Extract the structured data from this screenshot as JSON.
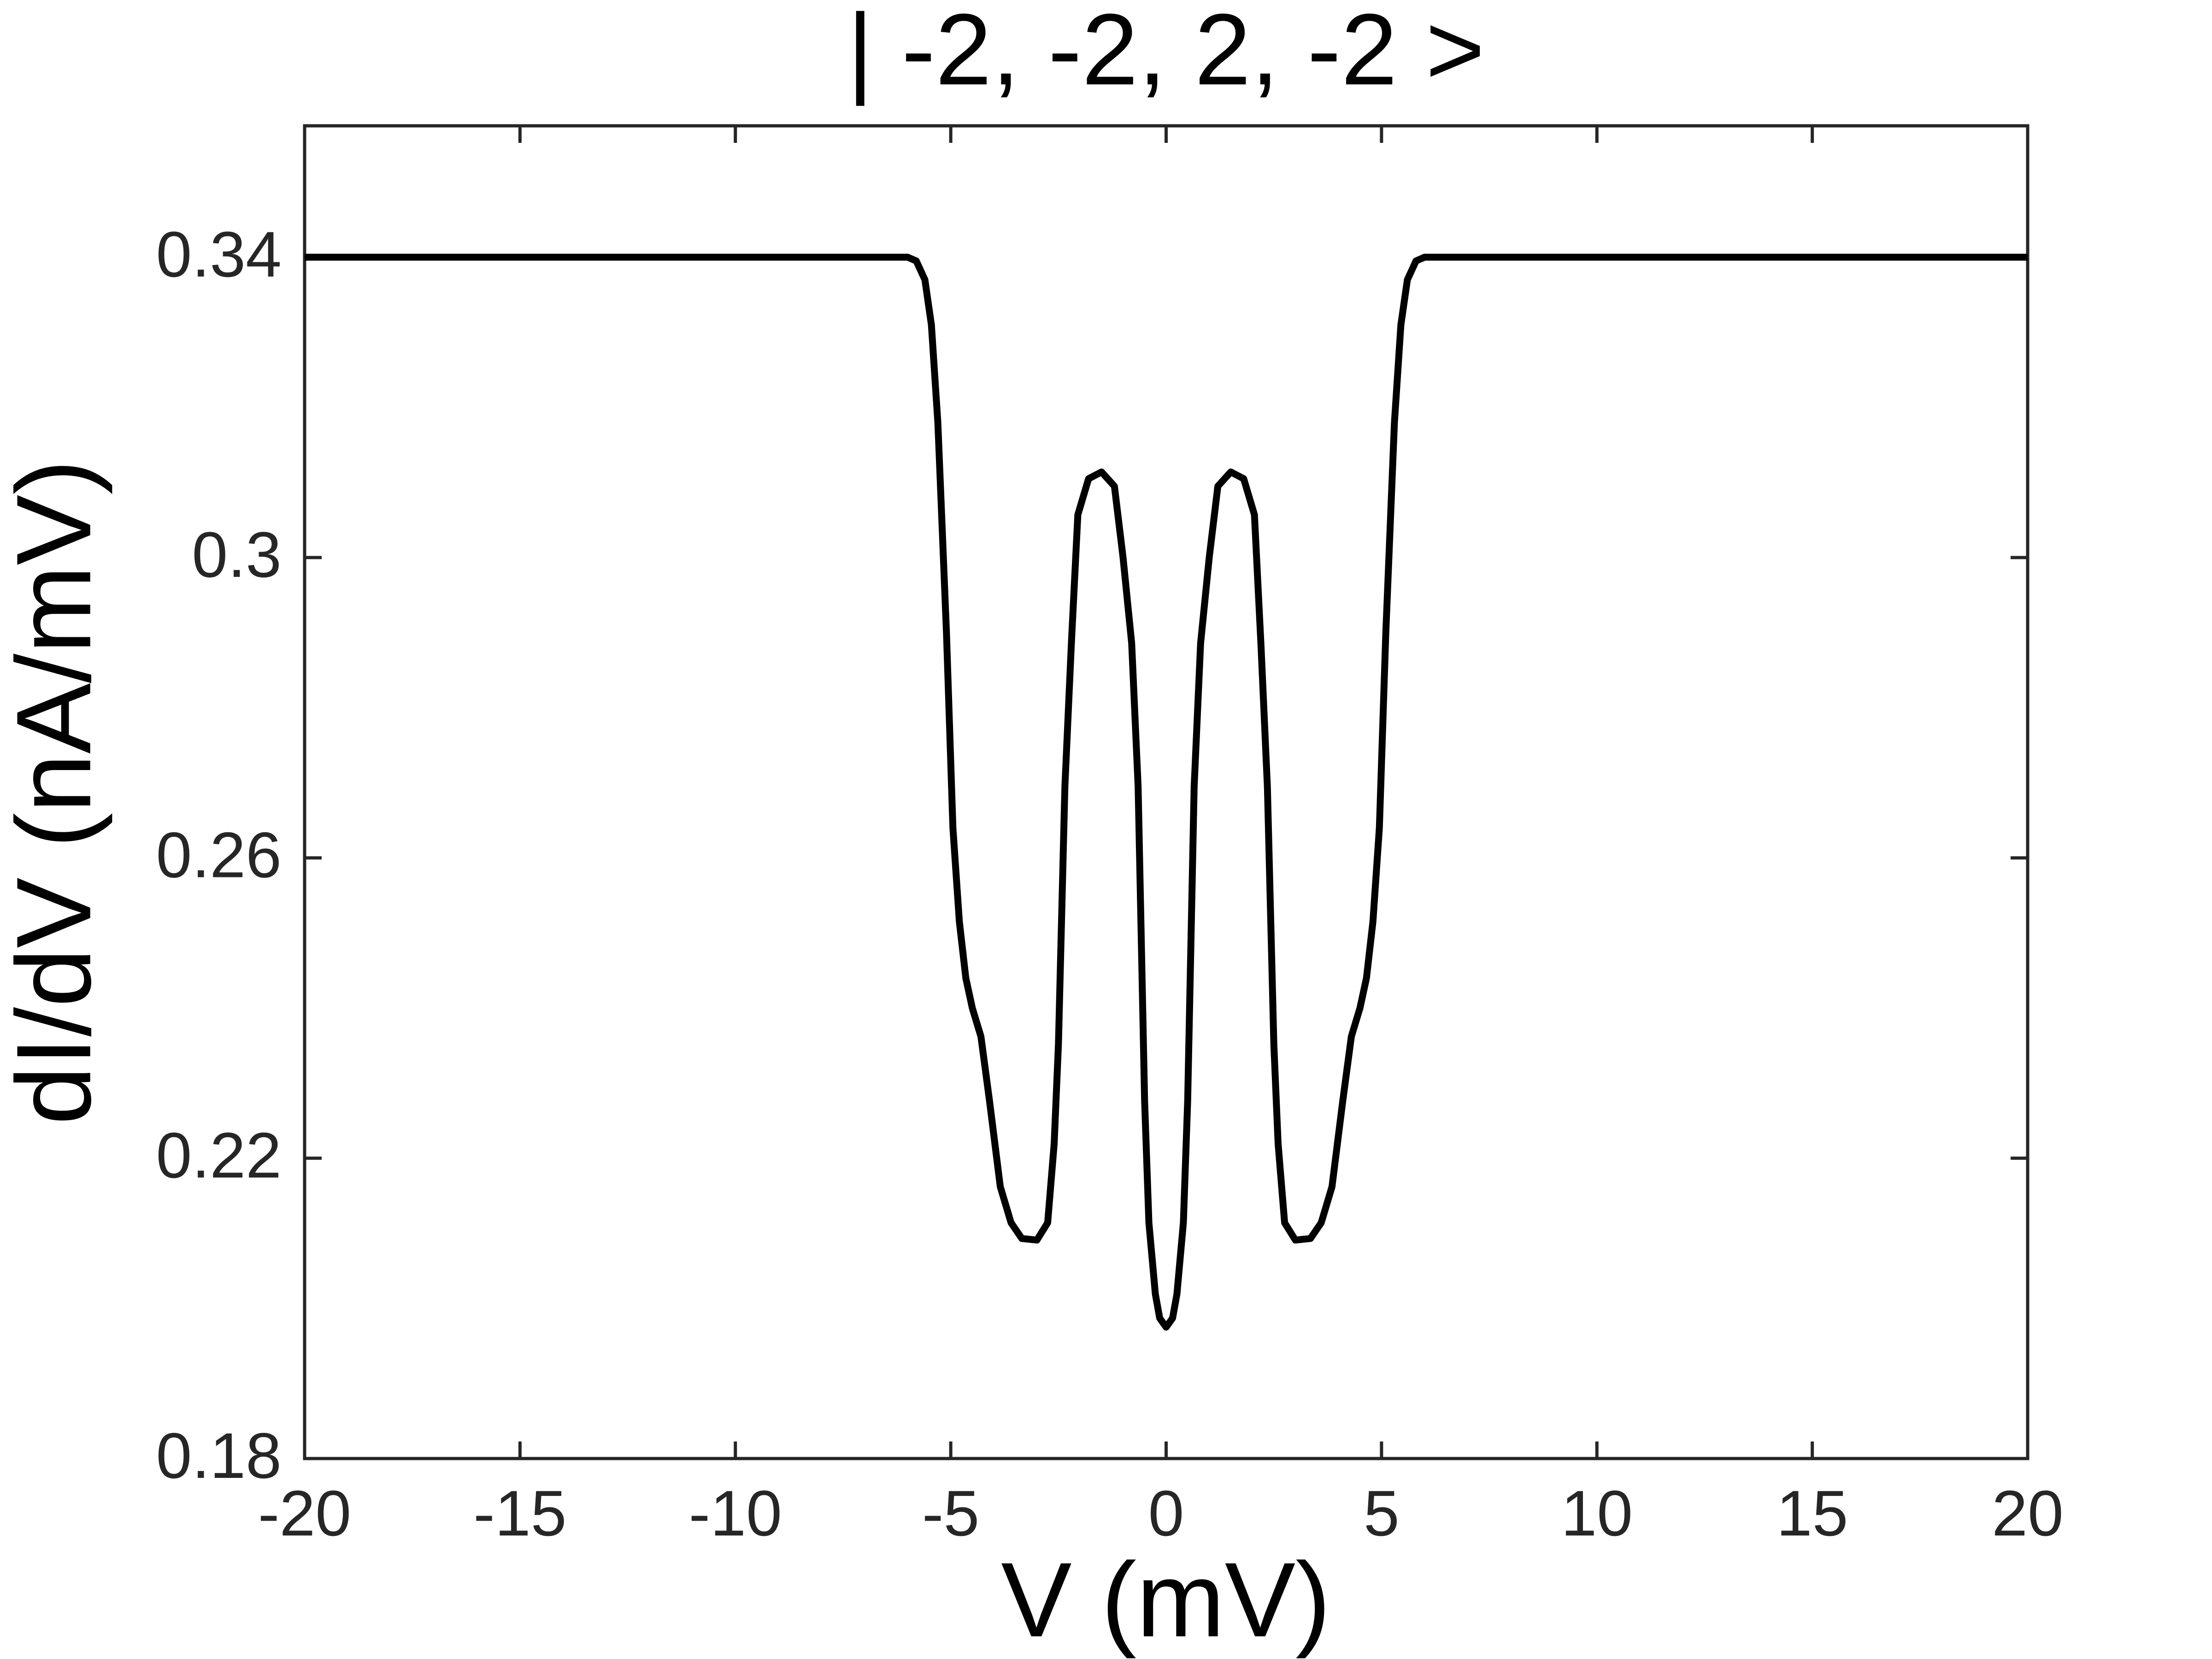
{
  "chart_data": {
    "type": "line",
    "title": "| -2, -2, 2, -2 >",
    "x_label": "V (mV)",
    "y_label": "dI/dV (nA/mV)",
    "x": [
      -20,
      -6,
      -5.8,
      -5.6,
      -5.45,
      -5.3,
      -5.1,
      -4.95,
      -4.8,
      -4.65,
      -4.5,
      -4.3,
      -4.1,
      -3.85,
      -3.6,
      -3.35,
      -3.0,
      -2.75,
      -2.6,
      -2.5,
      -2.35,
      -2.2,
      -2.05,
      -1.8,
      -1.5,
      -1.2,
      -1.0,
      -0.8,
      -0.65,
      -0.5,
      -0.4,
      -0.25,
      -0.15,
      0,
      0.15,
      0.25,
      0.4,
      0.5,
      0.65,
      0.8,
      1.0,
      1.2,
      1.5,
      1.8,
      2.05,
      2.2,
      2.35,
      2.5,
      2.6,
      2.75,
      3.0,
      3.35,
      3.6,
      3.85,
      4.1,
      4.3,
      4.5,
      4.65,
      4.8,
      4.95,
      5.1,
      5.3,
      5.45,
      5.6,
      5.8,
      6,
      20
    ],
    "series": [
      {
        "color": "#000000",
        "values": [
          0.34,
          0.34,
          0.3395,
          0.337,
          0.331,
          0.318,
          0.29,
          0.264,
          0.2515,
          0.244,
          0.24,
          0.2362,
          0.2276,
          0.2162,
          0.2114,
          0.2093,
          0.2091,
          0.2114,
          0.2219,
          0.2352,
          0.2695,
          0.2886,
          0.3057,
          0.3105,
          0.3114,
          0.3095,
          0.3,
          0.2886,
          0.2695,
          0.2276,
          0.2114,
          0.2019,
          0.1987,
          0.1975,
          0.1987,
          0.2019,
          0.2114,
          0.2276,
          0.2695,
          0.2886,
          0.3,
          0.3095,
          0.3114,
          0.3105,
          0.3057,
          0.2886,
          0.2695,
          0.2352,
          0.2219,
          0.2114,
          0.2091,
          0.2093,
          0.2114,
          0.2162,
          0.2276,
          0.2362,
          0.24,
          0.244,
          0.2515,
          0.264,
          0.29,
          0.318,
          0.331,
          0.337,
          0.3395,
          0.34,
          0.34
        ]
      }
    ],
    "xlim": [
      -20,
      20
    ],
    "xticks": [
      -20,
      -15,
      -10,
      -5,
      0,
      5,
      10,
      15,
      20
    ],
    "ylim": [
      0.18,
      0.3575
    ],
    "yticks": [
      0.18,
      0.22,
      0.26,
      0.3,
      0.34
    ]
  }
}
